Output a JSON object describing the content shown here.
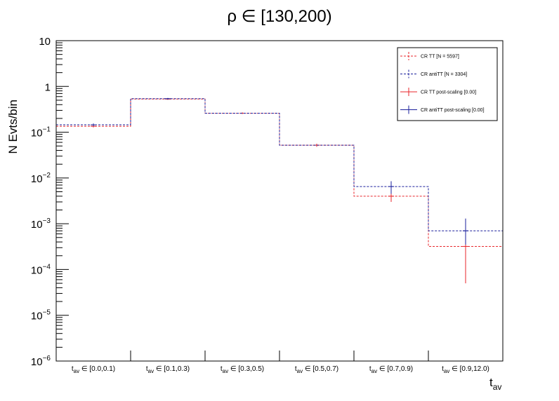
{
  "chart_data": {
    "type": "line",
    "title": "ρ ∈ [130,200)",
    "xlabel_main": "t",
    "xlabel_sub": "av",
    "ylabel": "N Evts/bin",
    "yscale": "log",
    "ylim": [
      1e-06,
      10
    ],
    "yticks": [
      {
        "value": 10,
        "label": "10",
        "exp": ""
      },
      {
        "value": 1,
        "label": "1",
        "exp": ""
      },
      {
        "value": 0.1,
        "label": "10",
        "exp": "−1"
      },
      {
        "value": 0.01,
        "label": "10",
        "exp": "−2"
      },
      {
        "value": 0.001,
        "label": "10",
        "exp": "−3"
      },
      {
        "value": 0.0001,
        "label": "10",
        "exp": "−4"
      },
      {
        "value": 1e-05,
        "label": "10",
        "exp": "−5"
      },
      {
        "value": 1e-06,
        "label": "10",
        "exp": "−6"
      }
    ],
    "categories": [
      {
        "prefix": "t",
        "sub": "av",
        "range": " ∈ [0.0,0.1)"
      },
      {
        "prefix": "t",
        "sub": "av",
        "range": " ∈ [0.1,0.3)"
      },
      {
        "prefix": "t",
        "sub": "av",
        "range": " ∈ [0.3,0.5)"
      },
      {
        "prefix": "t",
        "sub": "av",
        "range": " ∈ [0.5,0.7)"
      },
      {
        "prefix": "t",
        "sub": "av",
        "range": " ∈ [0.7,0.9)"
      },
      {
        "prefix": "t",
        "sub": "av",
        "range": " ∈ [0.9,12.0)"
      }
    ],
    "series": [
      {
        "name": "CR TT [N = 5597]",
        "color": "#e8262b",
        "style": "dashed",
        "values": [
          0.135,
          0.53,
          0.26,
          0.052,
          0.004,
          0.00032
        ],
        "err_low": [
          0.127,
          0.51,
          0.25,
          0.048,
          0.003,
          5e-05
        ],
        "err_high": [
          0.143,
          0.55,
          0.27,
          0.056,
          0.0052,
          0.00075
        ]
      },
      {
        "name": "CR antiTT [N = 3304]",
        "color": "#1a1f9c",
        "style": "dashed",
        "values": [
          0.145,
          0.54,
          null,
          null,
          0.0065,
          0.0007
        ],
        "err_low": [
          0.135,
          0.52,
          null,
          null,
          0.0045,
          0.00035
        ],
        "err_high": [
          0.155,
          0.56,
          null,
          null,
          0.0085,
          0.0013
        ]
      },
      {
        "name": "CR TT post-scaling [0.00]",
        "color": "#e8262b",
        "style": "solid",
        "values": [
          0,
          0,
          0,
          0,
          0,
          0
        ]
      },
      {
        "name": "CR antiTT post-scaling [0.00]",
        "color": "#1a1f9c",
        "style": "solid",
        "values": [
          0,
          0,
          0,
          0,
          0,
          0
        ]
      }
    ],
    "legend_position": "top-right",
    "grid": false
  }
}
